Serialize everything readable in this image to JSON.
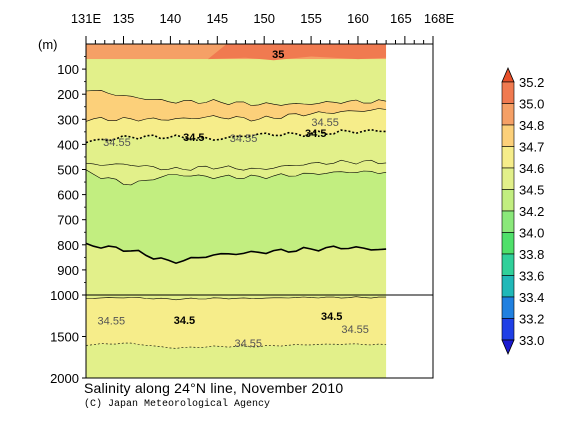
{
  "chart_data": {
    "type": "heatmap",
    "title": "Salinity along 24°N line, November 2010",
    "credit": "(C) Japan Meteorological Agency",
    "ylabel": "(m)",
    "x_ticks": [
      "131E",
      "135",
      "140",
      "145",
      "150",
      "155",
      "160",
      "165",
      "168E"
    ],
    "x_tick_values": [
      131,
      135,
      140,
      145,
      150,
      155,
      160,
      165,
      168
    ],
    "xlim": [
      131,
      168
    ],
    "data_xlim": [
      131,
      163
    ],
    "y_ticks_upper": [
      "100",
      "200",
      "300",
      "400",
      "500",
      "600",
      "700",
      "800",
      "900",
      "1000"
    ],
    "y_ticks_lower": [
      "1500",
      "2000"
    ],
    "ylim": [
      0,
      2000
    ],
    "y_break": 1000,
    "colorbar_levels": [
      "35.2",
      "35.0",
      "34.8",
      "34.7",
      "34.6",
      "34.5",
      "34.2",
      "34.0",
      "33.8",
      "33.6",
      "33.4",
      "33.2",
      "33.0"
    ],
    "colorbar_colors": [
      "#e8502a",
      "#f07a50",
      "#f5a066",
      "#fcd07a",
      "#f6ed8a",
      "#e2f08a",
      "#c2ee80",
      "#8ae87a",
      "#4fe06a",
      "#30d09a",
      "#20b8b8",
      "#2080e0",
      "#1f3fe6",
      "#1a1ad0"
    ],
    "contour_labels": [
      {
        "text": "35",
        "x": 151.5,
        "depth": 40
      },
      {
        "text": "34.5",
        "x": 142.5,
        "depth": 370
      },
      {
        "text": "34.5",
        "x": 155.5,
        "depth": 355
      },
      {
        "text": "34.55",
        "x": 134.3,
        "depth": 390
      },
      {
        "text": "34.55",
        "x": 147.8,
        "depth": 375
      },
      {
        "text": "34.55",
        "x": 156.5,
        "depth": 310
      },
      {
        "text": "34.5",
        "x": 141.5,
        "depth": 1300
      },
      {
        "text": "34.5",
        "x": 157.2,
        "depth": 1255
      },
      {
        "text": "34.55",
        "x": 133.7,
        "depth": 1305
      },
      {
        "text": "34.55",
        "x": 148.3,
        "depth": 1580
      },
      {
        "text": "34.55",
        "x": 159.7,
        "depth": 1410
      }
    ],
    "band_tops": [
      {
        "value": 34.8,
        "depths": [
          60,
          60,
          20,
          20,
          20,
          20,
          20,
          20
        ]
      },
      {
        "value": 34.7,
        "depths": [
          180,
          210,
          230,
          230,
          240,
          240,
          230,
          230
        ]
      },
      {
        "value": 34.6,
        "depths": [
          300,
          300,
          300,
          290,
          300,
          280,
          270,
          260
        ]
      },
      {
        "value": 34.55,
        "depths": [
          390,
          370,
          370,
          380,
          360,
          360,
          350,
          345
        ]
      },
      {
        "value": 34.5,
        "depths": [
          480,
          480,
          500,
          490,
          500,
          480,
          470,
          470
        ]
      },
      {
        "value": 34.2,
        "depths": [
          510,
          560,
          520,
          530,
          530,
          520,
          510,
          510
        ]
      },
      {
        "value": 34.5,
        "depths": [
          800,
          820,
          870,
          840,
          830,
          820,
          810,
          820
        ]
      },
      {
        "value": 34.6,
        "depths": [
          1040,
          1030,
          1050,
          1040,
          1040,
          1030,
          1030,
          1030
        ]
      },
      {
        "value": 34.6,
        "depths": [
          1600,
          1580,
          1640,
          1620,
          1620,
          1600,
          1590,
          1600
        ]
      }
    ]
  }
}
